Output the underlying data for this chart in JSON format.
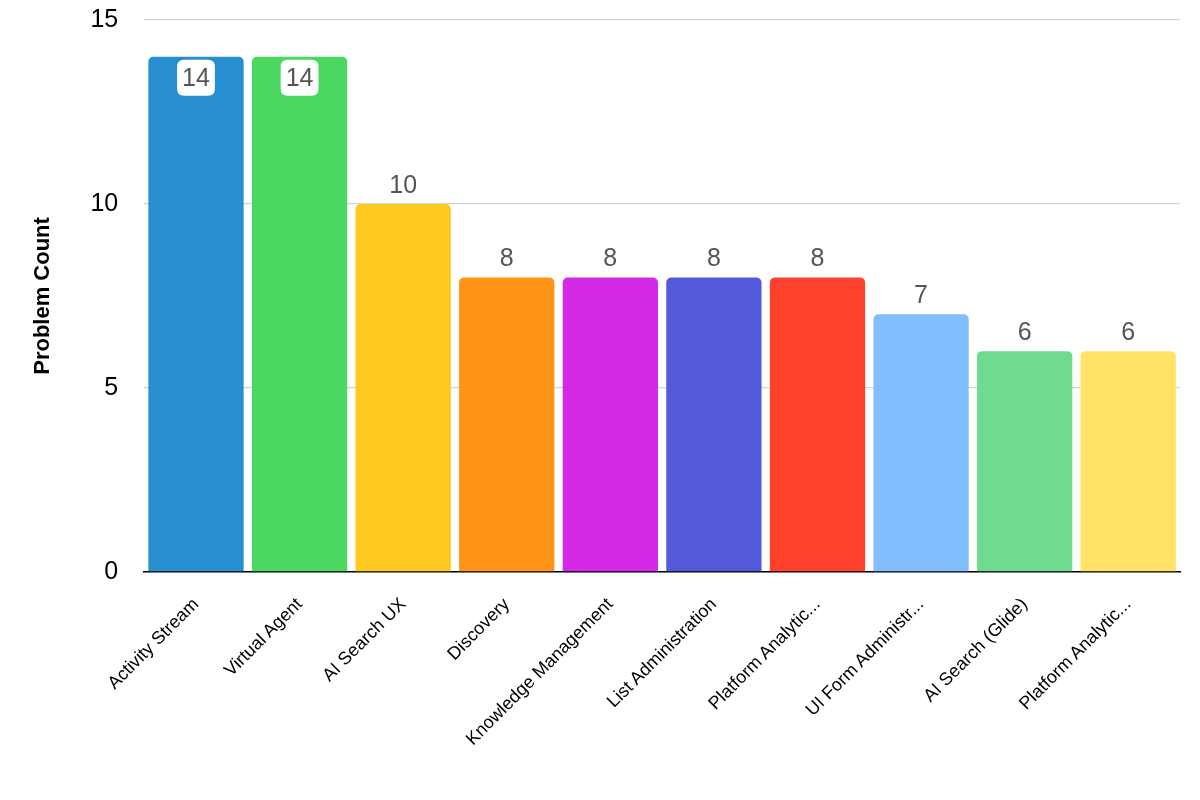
{
  "chart_data": {
    "type": "bar",
    "ylabel": "Problem Count",
    "categories": [
      "Activity Stream",
      "Virtual Agent",
      "AI Search UX",
      "Discovery",
      "Knowledge Management",
      "List Administration",
      "Platform Analytic...",
      "UI Form Administr...",
      "AI Search (Glide)",
      "Platform Analytic..."
    ],
    "values": [
      14,
      14,
      10,
      8,
      8,
      8,
      8,
      7,
      6,
      6
    ],
    "colors": [
      "#278ecf",
      "#4bd762",
      "#ffca1f",
      "#ff9416",
      "#d42ae8",
      "#535ad7",
      "#ff402c",
      "#83bfff",
      "#6edb8f",
      "#ffe366"
    ],
    "ylim": [
      0,
      15
    ],
    "yticks": [
      0,
      5,
      10,
      15
    ],
    "grid": "y",
    "data_labels": true
  }
}
